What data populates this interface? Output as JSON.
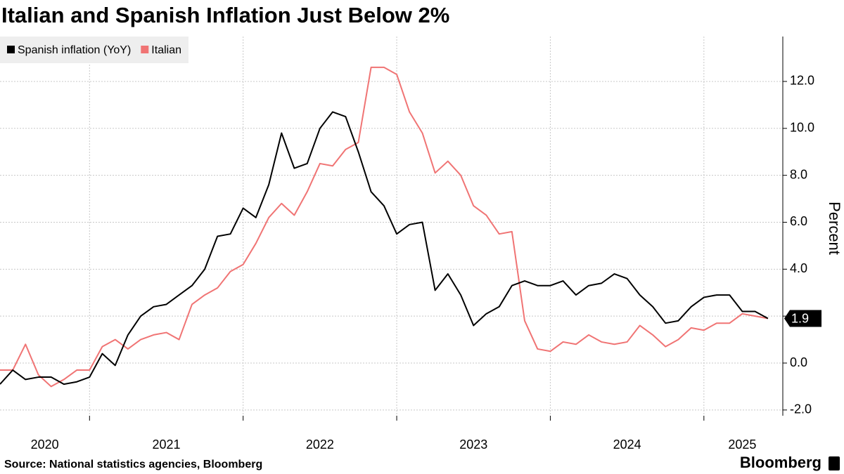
{
  "chart_data": {
    "type": "line",
    "title": "Italian and Spanish Inflation Just Below 2%",
    "y_label": "Percent",
    "source": "Source: National statistics agencies, Bloomberg",
    "branding": "Bloomberg",
    "legend": "upper left",
    "grid": true,
    "x": [
      2020.417,
      2020.5,
      2020.583,
      2020.667,
      2020.75,
      2020.833,
      2020.917,
      2021,
      2021.083,
      2021.167,
      2021.25,
      2021.333,
      2021.417,
      2021.5,
      2021.583,
      2021.667,
      2021.75,
      2021.833,
      2021.917,
      2022,
      2022.083,
      2022.167,
      2022.25,
      2022.333,
      2022.417,
      2022.5,
      2022.583,
      2022.667,
      2022.75,
      2022.833,
      2022.917,
      2023,
      2023.083,
      2023.167,
      2023.25,
      2023.333,
      2023.417,
      2023.5,
      2023.583,
      2023.667,
      2023.75,
      2023.833,
      2023.917,
      2024,
      2024.083,
      2024.167,
      2024.25,
      2024.333,
      2024.417,
      2024.5,
      2024.583,
      2024.667,
      2024.75,
      2024.833,
      2024.917,
      2025,
      2025.083,
      2025.167,
      2025.25,
      2025.333,
      2025.417
    ],
    "xlim": [
      2020.417,
      2025.5
    ],
    "xticks": [
      2021,
      2022,
      2023,
      2024,
      2025
    ],
    "year_labels": [
      2020,
      2021,
      2022,
      2023,
      2024,
      2025
    ],
    "ylim": [
      -2.244,
      13.914
    ],
    "yticks": [
      {
        "value": -2,
        "label": "-2.0"
      },
      {
        "value": 0,
        "label": "0.0"
      },
      {
        "value": 2,
        "label": "2.0"
      },
      {
        "value": 4,
        "label": "4.0"
      },
      {
        "value": 6,
        "label": "6.0"
      },
      {
        "value": 8,
        "label": "8.0"
      },
      {
        "value": 10,
        "label": "10.0"
      },
      {
        "value": 12,
        "label": "12.0"
      }
    ],
    "series": [
      {
        "name": "Spanish inflation (YoY)",
        "color": "#000000",
        "values": [
          -0.9,
          -0.3,
          -0.7,
          -0.6,
          -0.6,
          -0.9,
          -0.8,
          -0.6,
          0.4,
          -0.1,
          1.2,
          2.0,
          2.4,
          2.5,
          2.9,
          3.3,
          4.0,
          5.4,
          5.5,
          6.6,
          6.2,
          7.6,
          9.8,
          8.3,
          8.5,
          10.0,
          10.7,
          10.5,
          9.0,
          7.3,
          6.7,
          5.5,
          5.9,
          6.0,
          3.1,
          3.8,
          2.9,
          1.6,
          2.1,
          2.4,
          3.3,
          3.5,
          3.3,
          3.3,
          3.5,
          2.9,
          3.3,
          3.4,
          3.8,
          3.6,
          2.9,
          2.4,
          1.7,
          1.8,
          2.4,
          2.8,
          2.9,
          2.9,
          2.2,
          2.2,
          1.9
        ]
      },
      {
        "name": "Italian",
        "color": "#f07474",
        "values": [
          -0.3,
          -0.3,
          0.8,
          -0.5,
          -1.0,
          -0.7,
          -0.3,
          -0.3,
          0.7,
          1.0,
          0.6,
          1.0,
          1.2,
          1.3,
          1.0,
          2.5,
          2.9,
          3.2,
          3.9,
          4.2,
          5.1,
          6.2,
          6.8,
          6.3,
          7.3,
          8.5,
          8.4,
          9.1,
          9.4,
          12.6,
          12.6,
          12.3,
          10.7,
          9.8,
          8.1,
          8.6,
          8.0,
          6.7,
          6.3,
          5.5,
          5.6,
          1.8,
          0.6,
          0.5,
          0.9,
          0.8,
          1.2,
          0.9,
          0.8,
          0.9,
          1.6,
          1.2,
          0.7,
          1.0,
          1.5,
          1.4,
          1.7,
          1.7,
          2.1,
          2.0,
          1.9
        ]
      }
    ]
  }
}
